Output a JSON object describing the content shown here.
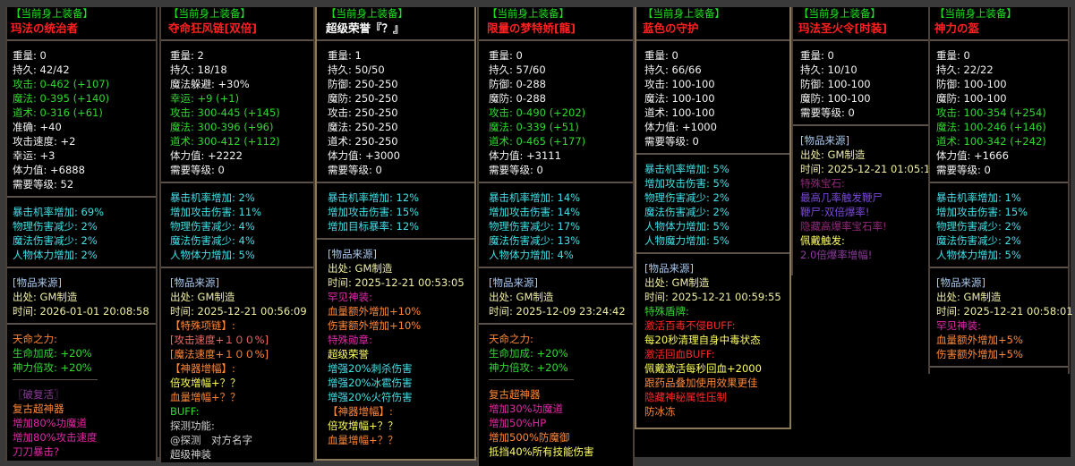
{
  "palette": {
    "w": "#f4f4f4",
    "g": "#30d830",
    "c": "#40e0e8",
    "b": "#a8c8f0",
    "y": "#f0f0a0",
    "o": "#ff8838",
    "m": "#e028a8",
    "p": "#7a48d8",
    "dp": "#902878",
    "pp": "#8c3a9c",
    "r": "#ff2828",
    "s": "#f06a6a",
    "lg": "#d0d0d0",
    "yy": "#ffff60"
  },
  "panels": [
    {
      "title": "【当前身上装备】",
      "name": "玛法の统治者",
      "sections": [
        [
          {
            "t": "重量: 0",
            "c": "w"
          },
          {
            "t": "持久: 42/42",
            "c": "w"
          },
          {
            "t": "攻击: 0-462 (+107)",
            "c": "g"
          },
          {
            "t": "魔法: 0-395 (+140)",
            "c": "g"
          },
          {
            "t": "道术: 0-316 (+61)",
            "c": "g"
          },
          {
            "t": "准确: +40",
            "c": "w"
          },
          {
            "t": "攻击速度: +2",
            "c": "w"
          },
          {
            "t": "幸运: +3",
            "c": "w"
          },
          {
            "t": "体力值: +6888",
            "c": "w"
          },
          {
            "t": "需要等级: 52",
            "c": "w"
          }
        ],
        [
          {
            "t": "暴击机率增加: 69%",
            "c": "c"
          },
          {
            "t": "物理伤害减少: 2%",
            "c": "c"
          },
          {
            "t": "魔法伤害减少: 2%",
            "c": "c"
          },
          {
            "t": "人物体力增加: 2%",
            "c": "c"
          }
        ],
        [
          {
            "t": "[物品来源]",
            "c": "b"
          },
          {
            "t": "出处: GM制造",
            "c": "y"
          },
          {
            "t": "时间: 2026-01-01 20:08:58",
            "c": "y"
          }
        ],
        [
          {
            "t": "天命之力:",
            "c": "o"
          },
          {
            "t": "生命加成: +20%",
            "c": "g"
          },
          {
            "t": "神力倍攻: +20%",
            "c": "g"
          }
        ],
        [
          {
            "t": "〖破复活〗",
            "c": "pp"
          },
          {
            "t": "复古超神器",
            "c": "o"
          },
          {
            "t": "增加80%功魔道",
            "c": "m"
          },
          {
            "t": "增加80%攻击速度",
            "c": "m"
          },
          {
            "t": "刀刀暴击?",
            "c": "m"
          }
        ]
      ]
    },
    {
      "title": "【当前身上装备】",
      "name": "夺命狂风链[双倍]",
      "sections": [
        [
          {
            "t": "重量: 2",
            "c": "w"
          },
          {
            "t": "持久: 18/18",
            "c": "w"
          },
          {
            "t": "魔法躲避: +30%",
            "c": "w"
          },
          {
            "t": "幸运: +9 (+1)",
            "c": "g"
          },
          {
            "t": "攻击: 300-445 (+145)",
            "c": "g"
          },
          {
            "t": "魔法: 300-396 (+96)",
            "c": "g"
          },
          {
            "t": "道术: 300-412 (+112)",
            "c": "g"
          },
          {
            "t": "体力值: +2222",
            "c": "w"
          },
          {
            "t": "需要等级: 0",
            "c": "w"
          }
        ],
        [
          {
            "t": "暴击机率增加: 2%",
            "c": "c"
          },
          {
            "t": "增加攻击伤害: 11%",
            "c": "c"
          },
          {
            "t": "物理伤害减少: 4%",
            "c": "c"
          },
          {
            "t": "魔法伤害减少: 4%",
            "c": "c"
          },
          {
            "t": "人物体力增加: 5%",
            "c": "c"
          }
        ],
        [
          {
            "t": "[物品来源]",
            "c": "b"
          },
          {
            "t": "出处: GM制造",
            "c": "y"
          },
          {
            "t": "时间: 2025-12-21 00:56:09",
            "c": "y"
          },
          {
            "t": "【特殊项链】:",
            "c": "o"
          },
          {
            "t": "[攻击速度+１００%]",
            "c": "s"
          },
          {
            "t": "[魔法速度+１００%]",
            "c": "o"
          },
          {
            "t": "【神器增幅】:",
            "c": "o"
          },
          {
            "t": "倍攻增幅+？？",
            "c": "yy"
          },
          {
            "t": "血量增幅+？？",
            "c": "o"
          },
          {
            "t": "BUFF:",
            "c": "g"
          },
          {
            "t": "探测功能:",
            "c": "lg"
          },
          {
            "t": "@探测　对方名字",
            "c": "lg"
          },
          {
            "t": "超级神装",
            "c": "lg"
          }
        ]
      ]
    },
    {
      "title": "【当前身上装备】",
      "name": "超级荣誉『？』",
      "sections": [
        [
          {
            "t": "重量: 1",
            "c": "w"
          },
          {
            "t": "持久: 50/50",
            "c": "w"
          },
          {
            "t": "防御: 250-250",
            "c": "w"
          },
          {
            "t": "魔防: 250-250",
            "c": "w"
          },
          {
            "t": "攻击: 250-250",
            "c": "w"
          },
          {
            "t": "魔法: 250-250",
            "c": "w"
          },
          {
            "t": "道术: 250-250",
            "c": "w"
          },
          {
            "t": "体力值: +3000",
            "c": "w"
          },
          {
            "t": "需要等级: 0",
            "c": "w"
          }
        ],
        [
          {
            "t": "暴击机率增加: 12%",
            "c": "c"
          },
          {
            "t": "增加攻击伤害: 15%",
            "c": "c"
          },
          {
            "t": "增加目标暴率: 12%",
            "c": "c"
          }
        ],
        [
          {
            "t": "[物品来源]",
            "c": "b"
          },
          {
            "t": "出处: GM制造",
            "c": "y"
          },
          {
            "t": "时间: 2025-12-21 00:53:05",
            "c": "y"
          },
          {
            "t": "罕见神装:",
            "c": "m"
          },
          {
            "t": "血量额外增加+10%",
            "c": "o"
          },
          {
            "t": "伤害额外增加+10%",
            "c": "o"
          },
          {
            "t": "特殊勋章:",
            "c": "m"
          },
          {
            "t": "超级荣誉",
            "c": "yy"
          },
          {
            "t": "增强20%刺杀伤害",
            "c": "c"
          },
          {
            "t": "增强20%冰雹伤害",
            "c": "c"
          },
          {
            "t": "增强20%火符伤害",
            "c": "c"
          },
          {
            "t": "【神器增幅】:",
            "c": "o"
          },
          {
            "t": "倍攻增幅+？？",
            "c": "yy"
          },
          {
            "t": "血量增幅+？？",
            "c": "o"
          }
        ]
      ]
    },
    {
      "title": "【当前身上装备】",
      "name": "限量の梦特娇[龍]",
      "sections": [
        [
          {
            "t": "重量: 0",
            "c": "w"
          },
          {
            "t": "持久: 57/60",
            "c": "w"
          },
          {
            "t": "防御: 0-288",
            "c": "w"
          },
          {
            "t": "魔防: 0-288",
            "c": "w"
          },
          {
            "t": "攻击: 0-490 (+202)",
            "c": "g"
          },
          {
            "t": "魔法: 0-339 (+51)",
            "c": "g"
          },
          {
            "t": "道术: 0-465 (+177)",
            "c": "g"
          },
          {
            "t": "体力值: +3111",
            "c": "w"
          },
          {
            "t": "需要等级: 0",
            "c": "w"
          }
        ],
        [
          {
            "t": "暴击机率增加: 14%",
            "c": "c"
          },
          {
            "t": "增加攻击伤害: 14%",
            "c": "c"
          },
          {
            "t": "物理伤害减少: 17%",
            "c": "c"
          },
          {
            "t": "魔法伤害减少: 13%",
            "c": "c"
          },
          {
            "t": "人物体力增加: 4%",
            "c": "c"
          }
        ],
        [
          {
            "t": "[物品来源]",
            "c": "b"
          },
          {
            "t": "出处: GM制造",
            "c": "y"
          },
          {
            "t": "时间: 2025-12-09 23:24:42",
            "c": "y"
          }
        ],
        [
          {
            "t": "天命之力:",
            "c": "o"
          },
          {
            "t": "生命加成: +20%",
            "c": "g"
          },
          {
            "t": "神力倍攻: +20%",
            "c": "g"
          }
        ],
        [
          {
            "t": "复古超神器",
            "c": "o"
          },
          {
            "t": "增加30%功魔道",
            "c": "m"
          },
          {
            "t": "增加50%HP",
            "c": "m"
          },
          {
            "t": "增加500%防魔御",
            "c": "o"
          },
          {
            "t": "抵挡40%所有技能伤害",
            "c": "yy"
          }
        ]
      ]
    },
    {
      "title": "【当前身上装备】",
      "name": "蓝色の守护",
      "sections": [
        [
          {
            "t": "重量: 0",
            "c": "w"
          },
          {
            "t": "持久: 66/66",
            "c": "w"
          },
          {
            "t": "攻击: 100-100",
            "c": "w"
          },
          {
            "t": "魔法: 100-100",
            "c": "w"
          },
          {
            "t": "道术: 100-100",
            "c": "w"
          },
          {
            "t": "体力值: +1000",
            "c": "w"
          },
          {
            "t": "需要等级: 0",
            "c": "w"
          }
        ],
        [
          {
            "t": "暴击机率增加: 5%",
            "c": "c"
          },
          {
            "t": "增加攻击伤害: 5%",
            "c": "c"
          },
          {
            "t": "物理伤害减少: 2%",
            "c": "c"
          },
          {
            "t": "魔法伤害减少: 2%",
            "c": "c"
          },
          {
            "t": "人物体力增加: 5%",
            "c": "c"
          },
          {
            "t": "人物魔力增加: 5%",
            "c": "c"
          }
        ],
        [
          {
            "t": "[物品来源]",
            "c": "b"
          },
          {
            "t": "出处: GM制造",
            "c": "y"
          },
          {
            "t": "时间: 2025-12-21 00:59:55",
            "c": "y"
          },
          {
            "t": "特殊盾牌:",
            "c": "g"
          },
          {
            "t": "激活百毒不侵BUFF:",
            "c": "r"
          },
          {
            "t": "每20秒清理自身中毒状态",
            "c": "yy"
          },
          {
            "t": "激活回血BUFF:",
            "c": "r"
          },
          {
            "t": "佩戴激活每秒回血+2000",
            "c": "yy"
          },
          {
            "t": "跟药品叠加使用效果更佳",
            "c": "o"
          },
          {
            "t": "隐藏神秘属性压制",
            "c": "r"
          },
          {
            "t": "防冰冻",
            "c": "o"
          }
        ]
      ]
    },
    {
      "title": "【当前身上装备】",
      "name": "玛法圣火令[时装]",
      "sections": [
        [
          {
            "t": "重量: 0",
            "c": "w"
          },
          {
            "t": "持久: 10/10",
            "c": "w"
          },
          {
            "t": "防御: 100-100",
            "c": "w"
          },
          {
            "t": "魔防: 100-100",
            "c": "w"
          },
          {
            "t": "需要等级: 0",
            "c": "w"
          }
        ],
        [
          {
            "t": "[物品来源]",
            "c": "b"
          },
          {
            "t": "出处: GM制造",
            "c": "y"
          },
          {
            "t": "时间: 2025-12-21 01:05:1",
            "c": "y"
          },
          {
            "t": "特殊宝石:",
            "c": "dp"
          },
          {
            "t": "最高几率触发鞭尸",
            "c": "p"
          },
          {
            "t": "鞭尸:双倍爆率!",
            "c": "p"
          },
          {
            "t": "隐藏高爆率宝石率!",
            "c": "dp"
          },
          {
            "t": "佩戴触发:",
            "c": "yy"
          },
          {
            "t": "2.0倍爆率增幅!",
            "c": "pp"
          }
        ]
      ]
    },
    {
      "title": "【当前身上装备】",
      "name": "神力の盔",
      "sections": [
        [
          {
            "t": "重量: 0",
            "c": "w"
          },
          {
            "t": "持久: 22/22",
            "c": "w"
          },
          {
            "t": "防御: 100-100",
            "c": "w"
          },
          {
            "t": "魔防: 100-100",
            "c": "w"
          },
          {
            "t": "攻击: 100-354 (+254)",
            "c": "g"
          },
          {
            "t": "魔法: 100-246 (+146)",
            "c": "g"
          },
          {
            "t": "道术: 100-342 (+242)",
            "c": "g"
          },
          {
            "t": "体力值: +1666",
            "c": "w"
          },
          {
            "t": "需要等级: 0",
            "c": "w"
          }
        ],
        [
          {
            "t": "暴击机率增加: 1%",
            "c": "c"
          },
          {
            "t": "增加攻击伤害: 15%",
            "c": "c"
          },
          {
            "t": "物理伤害减少: 2%",
            "c": "c"
          },
          {
            "t": "魔法伤害减少: 2%",
            "c": "c"
          },
          {
            "t": "人物体力增加: 5%",
            "c": "c"
          }
        ],
        [
          {
            "t": "[物品来源]",
            "c": "b"
          },
          {
            "t": "出处: GM制造",
            "c": "y"
          },
          {
            "t": "时间: 2025-12-21 00:58:01",
            "c": "y"
          },
          {
            "t": "罕见神装:",
            "c": "m"
          },
          {
            "t": "血量额外增加+5%",
            "c": "o"
          },
          {
            "t": "伤害额外增加+5%",
            "c": "o"
          }
        ]
      ]
    }
  ]
}
